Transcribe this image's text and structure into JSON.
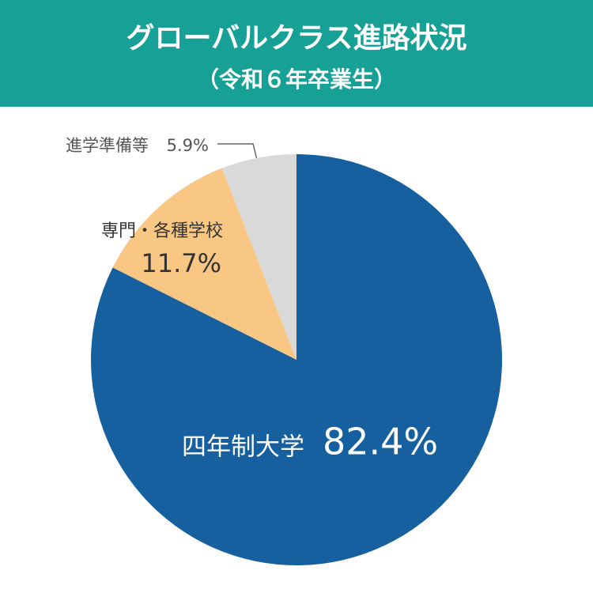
{
  "chart_data": {
    "type": "pie",
    "title": "グローバルクラス進路状況",
    "subtitle": "（令和６年卒業生）",
    "categories": [
      "四年制大学",
      "専門・各種学校",
      "進学準備等"
    ],
    "values": [
      82.4,
      11.7,
      5.9
    ],
    "value_labels": [
      "82.4%",
      "11.7%",
      "5.9%"
    ],
    "colors": [
      "#1660a0",
      "#f8c784",
      "#d9d9d9"
    ]
  }
}
